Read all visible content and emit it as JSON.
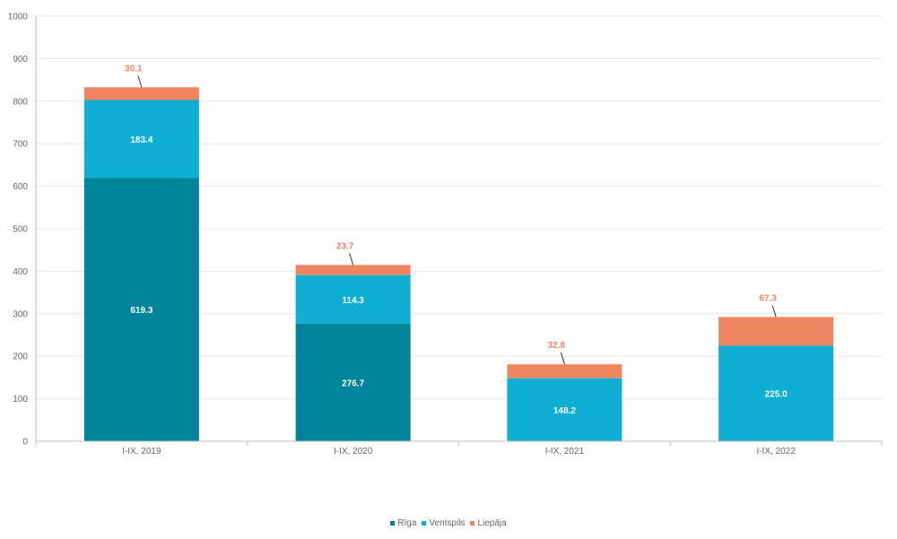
{
  "chart_data": {
    "type": "bar",
    "stacked": true,
    "categories": [
      "I-IX, 2019",
      "I-IX, 2020",
      "I-IX, 2021",
      "I-IX, 2022"
    ],
    "series": [
      {
        "name": "Rīga",
        "color": "#00849a",
        "values": [
          619.3,
          276.7,
          null,
          null
        ],
        "labels": [
          "619.3",
          "276.7",
          "",
          ""
        ]
      },
      {
        "name": "Ventspils",
        "color": "#0eafd2",
        "values": [
          183.4,
          114.3,
          148.2,
          225.0
        ],
        "labels": [
          "183.4",
          "114.3",
          "148.2",
          "225.0"
        ]
      },
      {
        "name": "Liepāja",
        "color": "#f08562",
        "values": [
          30.1,
          23.7,
          32.8,
          67.3
        ],
        "labels": [
          "30.1",
          "23.7",
          "32.8",
          "67.3"
        ]
      }
    ],
    "yticks": [
      "0",
      "100",
      "200",
      "300",
      "400",
      "500",
      "600",
      "700",
      "800",
      "900",
      "1000"
    ],
    "ylim": [
      0,
      1000
    ],
    "grid": true,
    "legend_position": "bottom"
  }
}
